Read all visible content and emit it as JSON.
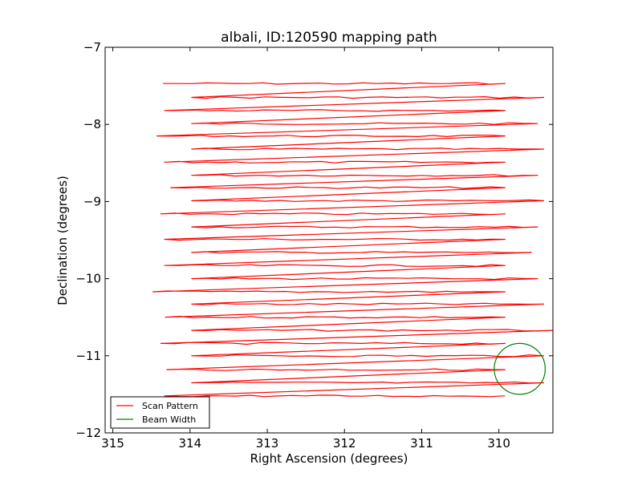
{
  "chart_data": {
    "type": "line",
    "title": "albali, ID:120590 mapping path",
    "xlabel": "Right Ascension (degrees)",
    "ylabel": "Declination (degrees)",
    "xlim": [
      315.1,
      309.3
    ],
    "ylim": [
      -12,
      -7
    ],
    "x_ticks": [
      315,
      314,
      313,
      312,
      311,
      310
    ],
    "y_ticks": [
      -7,
      -8,
      -9,
      -10,
      -11,
      -12
    ],
    "x_tick_labels": [
      "315",
      "314",
      "313",
      "312",
      "311",
      "310"
    ],
    "y_tick_labels": [
      "−7",
      "−8",
      "−9",
      "−10",
      "−11",
      "−12"
    ],
    "grid": false,
    "legend_position": "bottom-left",
    "series": [
      {
        "name": "Scan Pattern",
        "color": "#ff0000",
        "style": "serpentine raster scan",
        "rows": [
          {
            "dec": -7.47,
            "ra_start": 314.35,
            "ra_end": 309.92
          },
          {
            "dec": -7.65,
            "ra_start": 313.98,
            "ra_end": 309.42
          },
          {
            "dec": -7.82,
            "ra_start": 314.33,
            "ra_end": 309.92
          },
          {
            "dec": -7.99,
            "ra_start": 313.98,
            "ra_end": 309.5
          },
          {
            "dec": -8.15,
            "ra_start": 314.43,
            "ra_end": 309.92
          },
          {
            "dec": -8.32,
            "ra_start": 313.98,
            "ra_end": 309.42
          },
          {
            "dec": -8.49,
            "ra_start": 314.33,
            "ra_end": 309.92
          },
          {
            "dec": -8.66,
            "ra_start": 313.98,
            "ra_end": 309.5
          },
          {
            "dec": -8.82,
            "ra_start": 314.25,
            "ra_end": 309.92
          },
          {
            "dec": -8.99,
            "ra_start": 313.98,
            "ra_end": 309.42
          },
          {
            "dec": -9.16,
            "ra_start": 314.38,
            "ra_end": 309.92
          },
          {
            "dec": -9.33,
            "ra_start": 313.98,
            "ra_end": 309.5
          },
          {
            "dec": -9.49,
            "ra_start": 314.33,
            "ra_end": 309.92
          },
          {
            "dec": -9.66,
            "ra_start": 313.98,
            "ra_end": 309.58
          },
          {
            "dec": -9.83,
            "ra_start": 314.33,
            "ra_end": 309.92
          },
          {
            "dec": -10.0,
            "ra_start": 313.98,
            "ra_end": 309.5
          },
          {
            "dec": -10.17,
            "ra_start": 314.48,
            "ra_end": 309.92
          },
          {
            "dec": -10.33,
            "ra_start": 313.98,
            "ra_end": 309.42
          },
          {
            "dec": -10.5,
            "ra_start": 314.32,
            "ra_end": 309.92
          },
          {
            "dec": -10.67,
            "ra_start": 313.98,
            "ra_end": 309.3
          },
          {
            "dec": -10.84,
            "ra_start": 314.38,
            "ra_end": 309.92
          },
          {
            "dec": -11.0,
            "ra_start": 313.98,
            "ra_end": 309.42
          },
          {
            "dec": -11.18,
            "ra_start": 314.3,
            "ra_end": 309.92
          },
          {
            "dec": -11.35,
            "ra_start": 313.98,
            "ra_end": 309.42
          },
          {
            "dec": -11.52,
            "ra_start": 314.33,
            "ra_end": 309.92
          }
        ]
      },
      {
        "name": "Beam Width",
        "color": "#008000",
        "shape": "circle",
        "center": {
          "ra": 309.73,
          "dec": -11.17
        },
        "radius_deg": 0.33
      }
    ]
  }
}
